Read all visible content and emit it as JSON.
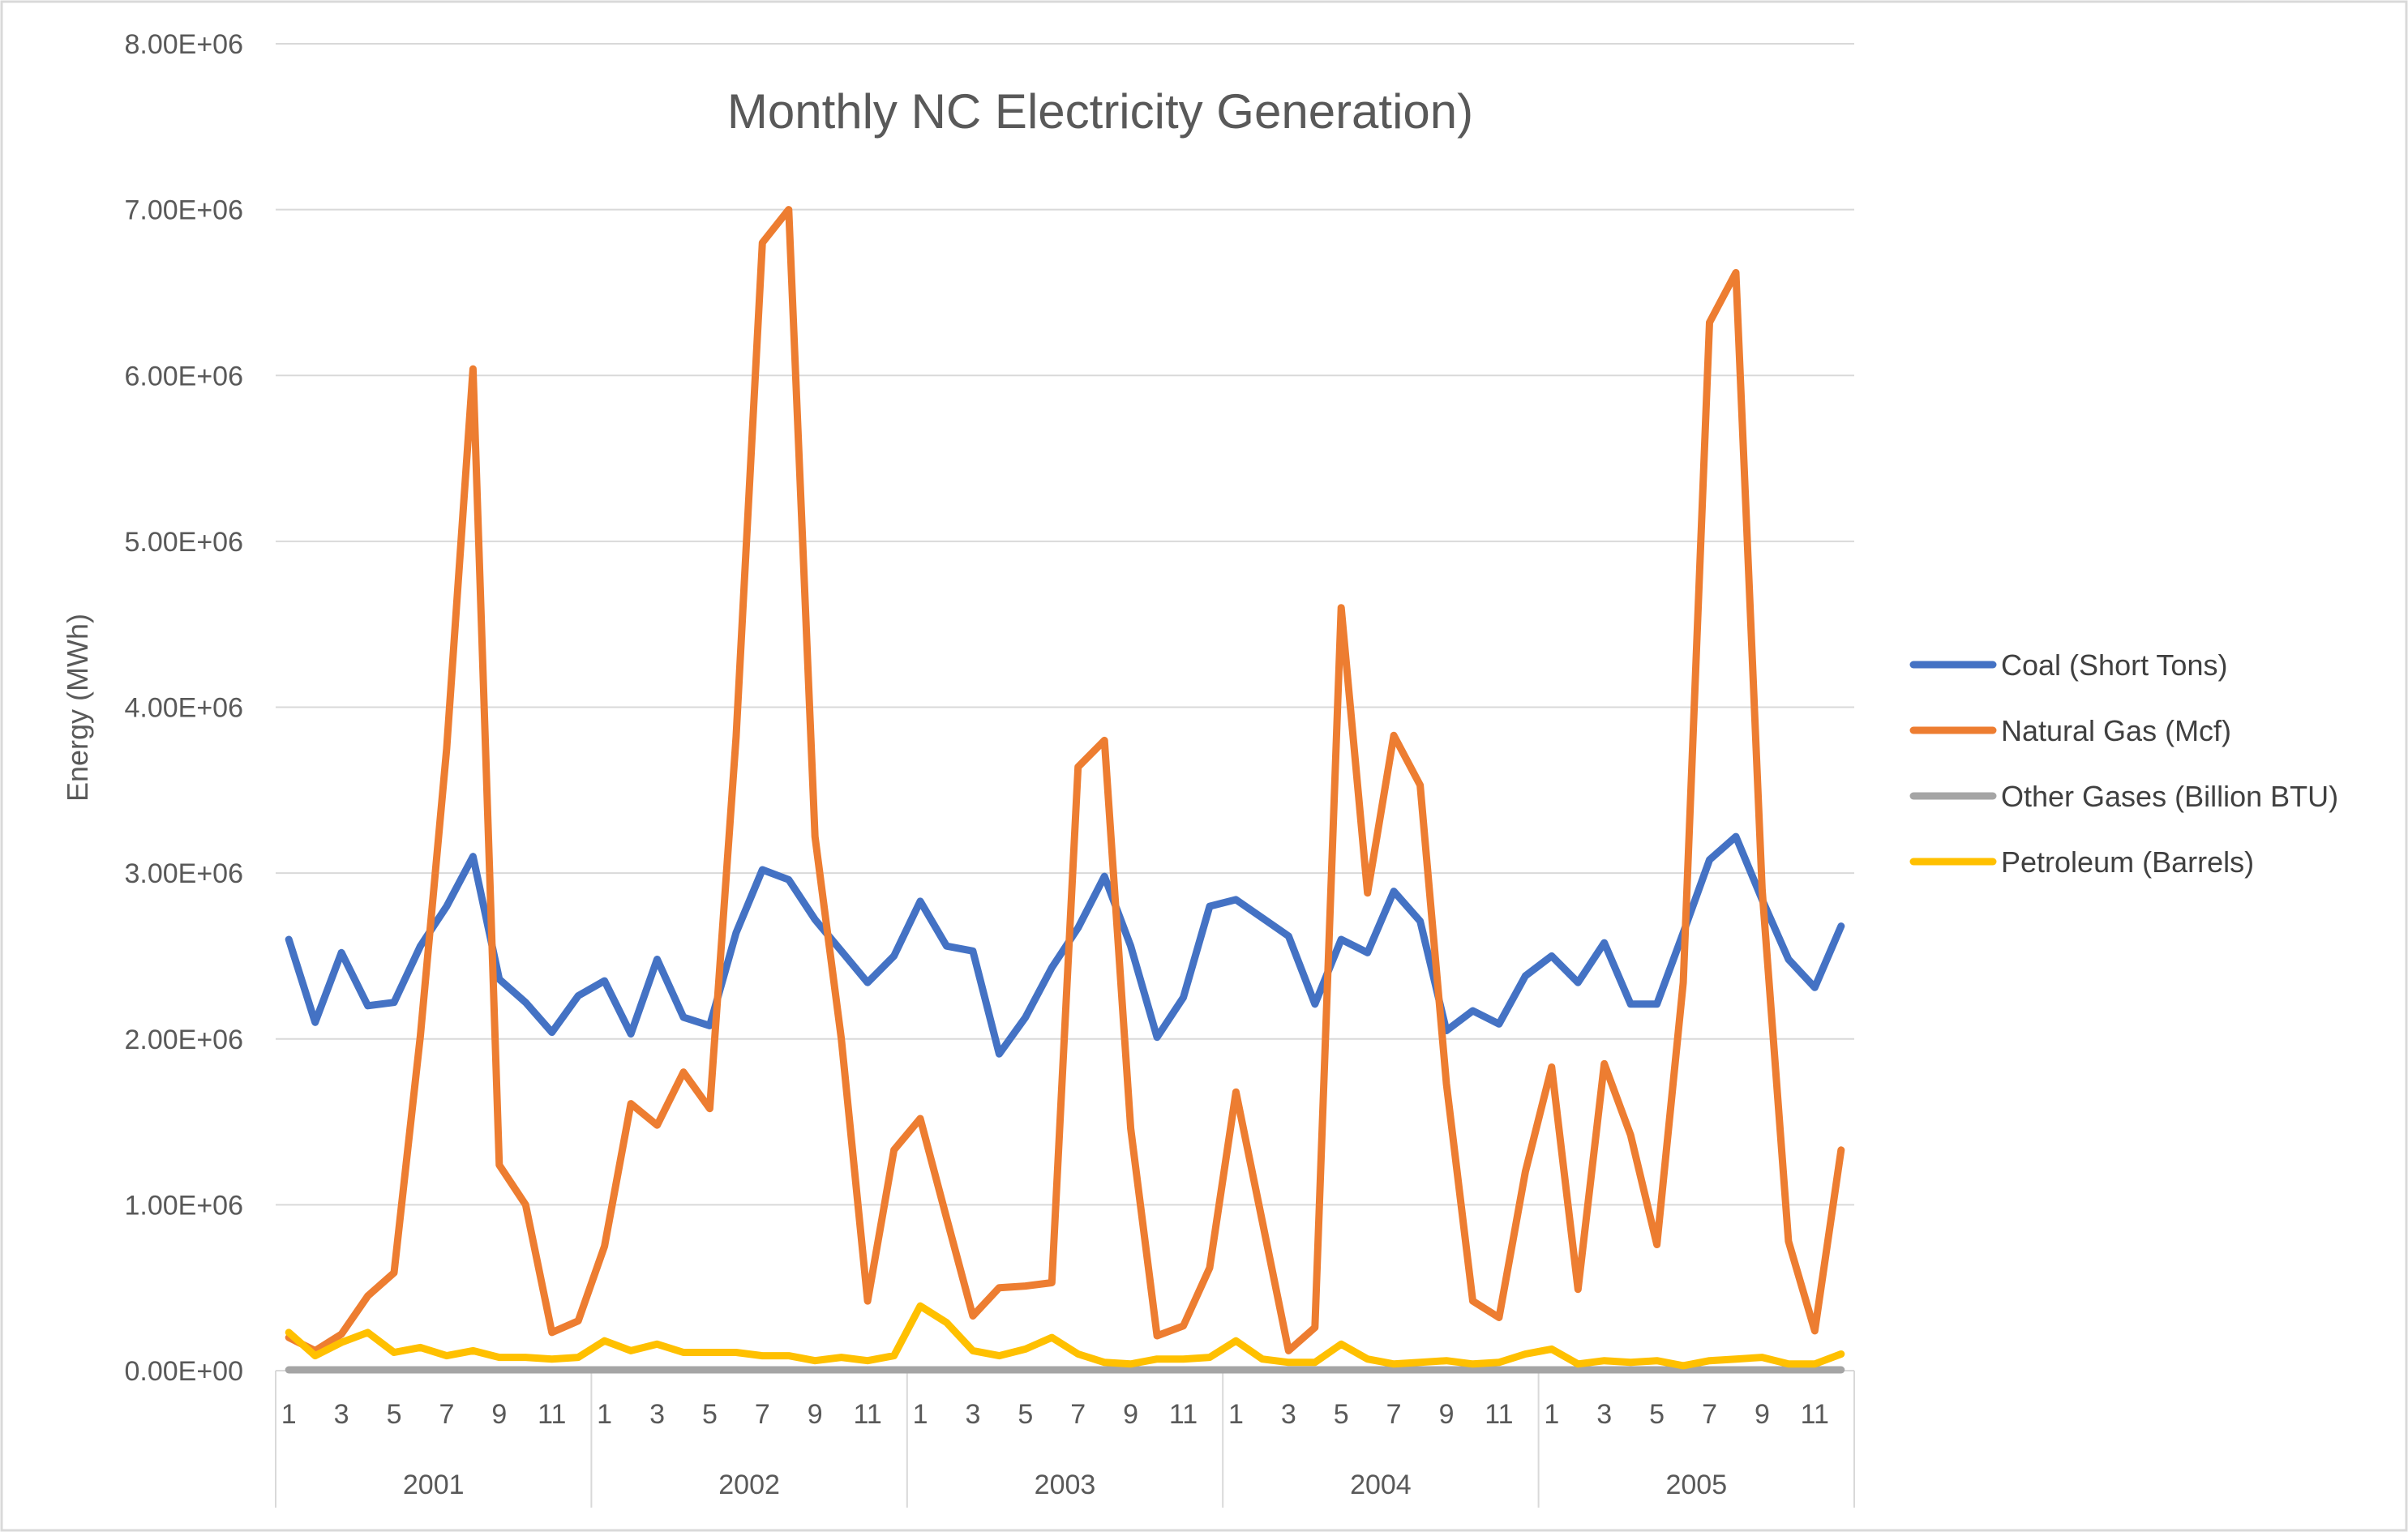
{
  "chart_data": {
    "type": "line",
    "title": "Monthly NC Electricity Generation)",
    "xlabel": "",
    "ylabel": "Energy (MWh)",
    "ylim": [
      0,
      8000000
    ],
    "y_ticks": [
      0,
      1000000,
      2000000,
      3000000,
      4000000,
      5000000,
      6000000,
      7000000,
      8000000
    ],
    "y_tick_labels": [
      "0.00E+00",
      "1.00E+06",
      "2.00E+06",
      "3.00E+06",
      "4.00E+06",
      "5.00E+06",
      "6.00E+06",
      "7.00E+06",
      "8.00E+06"
    ],
    "grid": true,
    "legend_position": "right",
    "months_per_year": 12,
    "month_tick_labels": [
      "1",
      "",
      "3",
      "",
      "5",
      "",
      "7",
      "",
      "9",
      "",
      "11",
      ""
    ],
    "years": [
      "2001",
      "2002",
      "2003",
      "2004",
      "2005"
    ],
    "colors": {
      "grid": "#d9d9d9",
      "axis": "#d9d9d9",
      "text": "#595959"
    },
    "series": [
      {
        "name": "Coal (Short Tons)",
        "color": "#4472c4",
        "values": [
          2600000,
          2100000,
          2520000,
          2200000,
          2220000,
          2560000,
          2800000,
          3100000,
          2360000,
          2220000,
          2040000,
          2260000,
          2350000,
          2030000,
          2480000,
          2130000,
          2080000,
          2640000,
          3020000,
          2960000,
          2720000,
          2530000,
          2340000,
          2500000,
          2830000,
          2560000,
          2530000,
          1910000,
          2130000,
          2430000,
          2670000,
          2980000,
          2560000,
          2010000,
          2250000,
          2800000,
          2840000,
          2730000,
          2620000,
          2210000,
          2600000,
          2520000,
          2890000,
          2710000,
          2050000,
          2170000,
          2090000,
          2380000,
          2500000,
          2340000,
          2580000,
          2210000,
          2210000,
          2640000,
          3080000,
          3220000,
          2840000,
          2480000,
          2310000,
          2680000
        ]
      },
      {
        "name": "Natural Gas (Mcf)",
        "color": "#ed7d31",
        "values": [
          200000,
          120000,
          220000,
          450000,
          590000,
          2020000,
          3750000,
          6040000,
          1240000,
          1000000,
          230000,
          300000,
          750000,
          1610000,
          1480000,
          1800000,
          1580000,
          3820000,
          6800000,
          7000000,
          3220000,
          2000000,
          420000,
          1330000,
          1520000,
          920000,
          330000,
          500000,
          510000,
          530000,
          3640000,
          3800000,
          1460000,
          210000,
          270000,
          620000,
          1680000,
          900000,
          120000,
          260000,
          4600000,
          2880000,
          3830000,
          3530000,
          1730000,
          420000,
          320000,
          1200000,
          1830000,
          490000,
          1850000,
          1420000,
          760000,
          2340000,
          6320000,
          6620000,
          2900000,
          780000,
          240000,
          1330000
        ]
      },
      {
        "name": "Other Gases (Billion BTU)",
        "color": "#a5a5a5",
        "values": [
          5000,
          5000,
          5000,
          5000,
          5000,
          5000,
          5000,
          5000,
          5000,
          5000,
          5000,
          5000,
          5000,
          5000,
          5000,
          5000,
          5000,
          5000,
          5000,
          5000,
          5000,
          5000,
          5000,
          5000,
          5000,
          5000,
          5000,
          5000,
          5000,
          5000,
          5000,
          5000,
          5000,
          5000,
          5000,
          5000,
          5000,
          5000,
          5000,
          5000,
          5000,
          5000,
          5000,
          5000,
          5000,
          5000,
          5000,
          5000,
          5000,
          5000,
          5000,
          5000,
          5000,
          5000,
          5000,
          5000,
          5000,
          5000,
          5000,
          5000
        ]
      },
      {
        "name": "Petroleum (Barrels)",
        "color": "#ffc000",
        "values": [
          230000,
          90000,
          170000,
          230000,
          110000,
          140000,
          90000,
          120000,
          80000,
          80000,
          70000,
          80000,
          180000,
          120000,
          160000,
          110000,
          110000,
          110000,
          90000,
          90000,
          60000,
          80000,
          60000,
          90000,
          390000,
          290000,
          120000,
          90000,
          130000,
          200000,
          100000,
          50000,
          40000,
          70000,
          70000,
          80000,
          180000,
          70000,
          50000,
          50000,
          160000,
          70000,
          40000,
          50000,
          60000,
          40000,
          50000,
          100000,
          130000,
          40000,
          60000,
          50000,
          60000,
          30000,
          60000,
          70000,
          80000,
          40000,
          40000,
          100000
        ]
      }
    ]
  }
}
